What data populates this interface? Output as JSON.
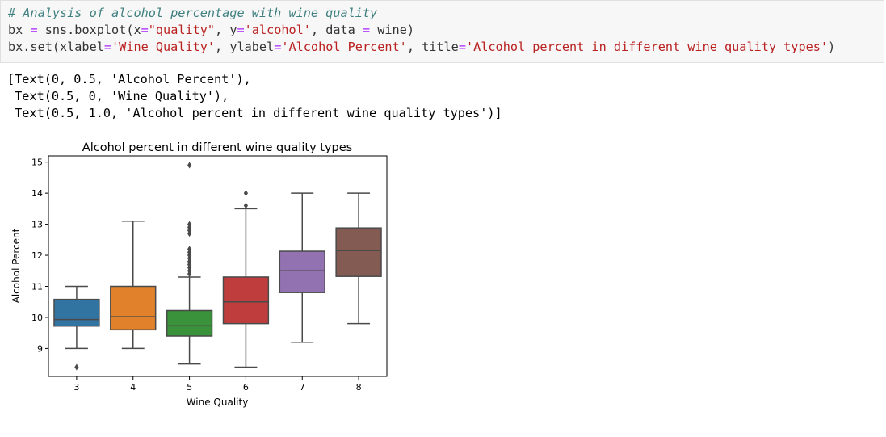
{
  "code": {
    "comment": "# Analysis of alcohol percentage with wine quality",
    "line2": {
      "a": "bx ",
      "eq1": "=",
      "b": " sns.boxplot(x",
      "eq2": "=",
      "s1": "\"quality\"",
      "c": ", y",
      "eq3": "=",
      "s2": "'alcohol'",
      "d": ", data ",
      "eq4": "=",
      "e": " wine)"
    },
    "line3": {
      "a": "bx.set(xlabel",
      "eq1": "=",
      "s1": "'Wine Quality'",
      "b": ", ylabel",
      "eq2": "=",
      "s2": "'Alcohol Percent'",
      "c": ", title",
      "eq3": "=",
      "s3": "'Alcohol percent in different wine quality types'",
      "d": ")"
    }
  },
  "output": {
    "line1": "[Text(0, 0.5, 'Alcohol Percent'),",
    "line2": " Text(0.5, 0, 'Wine Quality'),",
    "line3": " Text(0.5, 1.0, 'Alcohol percent in different wine quality types')]"
  },
  "chart_data": {
    "type": "boxplot",
    "title": "Alcohol percent in different wine quality types",
    "xlabel": "Wine Quality",
    "ylabel": "Alcohol Percent",
    "ylim": [
      8.1,
      15.2
    ],
    "yticks": [
      9,
      10,
      11,
      12,
      13,
      14,
      15
    ],
    "categories": [
      "3",
      "4",
      "5",
      "6",
      "7",
      "8"
    ],
    "boxes": [
      {
        "category": "3",
        "color": "#3274a1",
        "whisker_low": 9.0,
        "q1": 9.72,
        "median": 9.93,
        "q3": 10.58,
        "whisker_high": 11.0,
        "outliers": [
          8.4
        ]
      },
      {
        "category": "4",
        "color": "#e1812c",
        "whisker_low": 9.0,
        "q1": 9.6,
        "median": 10.02,
        "q3": 11.0,
        "whisker_high": 13.1,
        "outliers": []
      },
      {
        "category": "5",
        "color": "#3a923a",
        "whisker_low": 8.5,
        "q1": 9.4,
        "median": 9.73,
        "q3": 10.22,
        "whisker_high": 11.3,
        "outliers": [
          11.4,
          11.5,
          11.6,
          11.7,
          11.8,
          11.9,
          12.0,
          12.1,
          12.2,
          12.7,
          12.8,
          12.9,
          13.0,
          14.9
        ]
      },
      {
        "category": "6",
        "color": "#c03d3e",
        "whisker_low": 8.4,
        "q1": 9.8,
        "median": 10.5,
        "q3": 11.3,
        "whisker_high": 13.5,
        "outliers": [
          13.6,
          14.0
        ]
      },
      {
        "category": "7",
        "color": "#9372b2",
        "whisker_low": 9.2,
        "q1": 10.8,
        "median": 11.5,
        "q3": 12.13,
        "whisker_high": 14.0,
        "outliers": []
      },
      {
        "category": "8",
        "color": "#845b53",
        "whisker_low": 9.8,
        "q1": 11.32,
        "median": 12.15,
        "q3": 12.88,
        "whisker_high": 14.0,
        "outliers": []
      }
    ]
  }
}
